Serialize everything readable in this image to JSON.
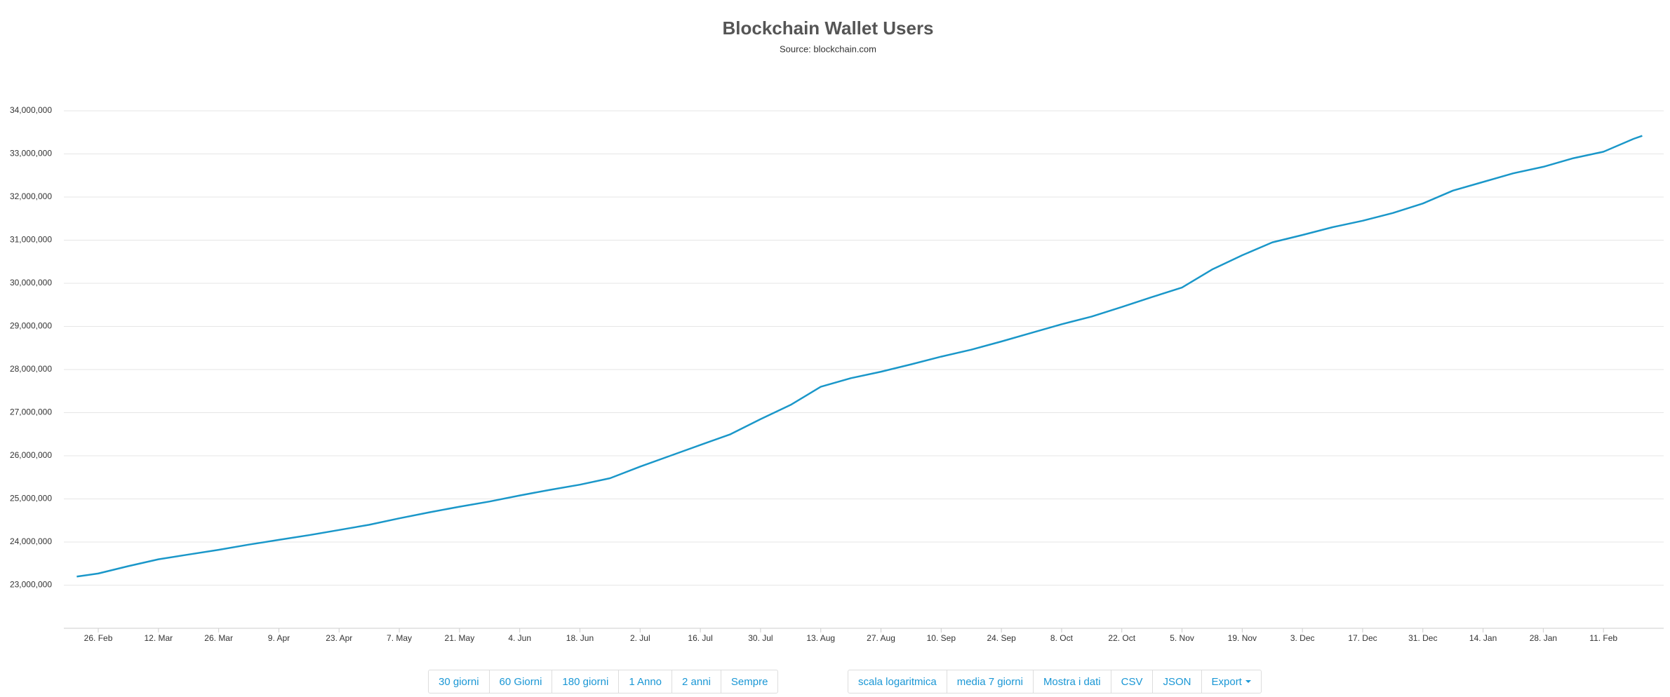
{
  "chart_data": {
    "type": "line",
    "title": "Blockchain Wallet Users",
    "subtitle": "Source: blockchain.com",
    "x": [
      -5,
      0,
      7,
      14,
      21,
      28,
      35,
      42,
      49,
      56,
      63,
      70,
      77,
      84,
      91,
      98,
      105,
      112,
      119,
      126,
      133,
      140,
      147,
      154,
      161,
      168,
      175,
      182,
      189,
      196,
      203,
      210,
      217,
      224,
      231,
      238,
      245,
      252,
      259,
      266,
      273,
      280,
      287,
      294,
      301,
      308,
      315,
      322,
      329,
      336,
      343,
      350,
      357,
      359
    ],
    "values": [
      23200000,
      23270000,
      23440000,
      23600000,
      23710000,
      23820000,
      23940000,
      24050000,
      24160000,
      24280000,
      24400000,
      24550000,
      24690000,
      24820000,
      24940000,
      25080000,
      25210000,
      25330000,
      25480000,
      25750000,
      26000000,
      26250000,
      26500000,
      26850000,
      27180000,
      27600000,
      27800000,
      27950000,
      28120000,
      28300000,
      28460000,
      28650000,
      28850000,
      29050000,
      29230000,
      29450000,
      29680000,
      29900000,
      30320000,
      30650000,
      30950000,
      31120000,
      31300000,
      31450000,
      31630000,
      31850000,
      32150000,
      32350000,
      32550000,
      32700000,
      32900000,
      33050000,
      33350000,
      33420000
    ],
    "color": "#1a97c9",
    "xlim": [
      -8,
      364
    ],
    "xticks": [
      {
        "value": 0,
        "label": "26. Feb"
      },
      {
        "value": 14,
        "label": "12. Mar"
      },
      {
        "value": 28,
        "label": "26. Mar"
      },
      {
        "value": 42,
        "label": "9. Apr"
      },
      {
        "value": 56,
        "label": "23. Apr"
      },
      {
        "value": 70,
        "label": "7. May"
      },
      {
        "value": 84,
        "label": "21. May"
      },
      {
        "value": 98,
        "label": "4. Jun"
      },
      {
        "value": 112,
        "label": "18. Jun"
      },
      {
        "value": 126,
        "label": "2. Jul"
      },
      {
        "value": 140,
        "label": "16. Jul"
      },
      {
        "value": 154,
        "label": "30. Jul"
      },
      {
        "value": 168,
        "label": "13. Aug"
      },
      {
        "value": 182,
        "label": "27. Aug"
      },
      {
        "value": 196,
        "label": "10. Sep"
      },
      {
        "value": 210,
        "label": "24. Sep"
      },
      {
        "value": 224,
        "label": "8. Oct"
      },
      {
        "value": 238,
        "label": "22. Oct"
      },
      {
        "value": 252,
        "label": "5. Nov"
      },
      {
        "value": 266,
        "label": "19. Nov"
      },
      {
        "value": 280,
        "label": "3. Dec"
      },
      {
        "value": 294,
        "label": "17. Dec"
      },
      {
        "value": 308,
        "label": "31. Dec"
      },
      {
        "value": 322,
        "label": "14. Jan"
      },
      {
        "value": 336,
        "label": "28. Jan"
      },
      {
        "value": 350,
        "label": "11. Feb"
      }
    ],
    "ylim": [
      22000000,
      34000000
    ],
    "yticks": [
      {
        "value": 23000000,
        "label": "23,000,000"
      },
      {
        "value": 24000000,
        "label": "24,000,000"
      },
      {
        "value": 25000000,
        "label": "25,000,000"
      },
      {
        "value": 26000000,
        "label": "26,000,000"
      },
      {
        "value": 27000000,
        "label": "27,000,000"
      },
      {
        "value": 28000000,
        "label": "28,000,000"
      },
      {
        "value": 29000000,
        "label": "29,000,000"
      },
      {
        "value": 30000000,
        "label": "30,000,000"
      },
      {
        "value": 31000000,
        "label": "31,000,000"
      },
      {
        "value": 32000000,
        "label": "32,000,000"
      },
      {
        "value": 33000000,
        "label": "33,000,000"
      },
      {
        "value": 34000000,
        "label": "34,000,000"
      }
    ],
    "grid": true
  },
  "buttons": {
    "range": [
      "30 giorni",
      "60 Giorni",
      "180 giorni",
      "1 Anno",
      "2 anni",
      "Sempre"
    ],
    "options": [
      "scala logaritmica",
      "media 7 giorni",
      "Mostra i dati",
      "CSV",
      "JSON",
      "Export"
    ]
  }
}
